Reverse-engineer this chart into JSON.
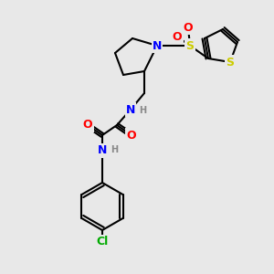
{
  "background_color": "#e8e8e8",
  "atom_colors": {
    "N": "#0000ff",
    "O": "#ff0000",
    "S": "#cccc00",
    "Cl": "#00aa00",
    "H": "#888888"
  }
}
